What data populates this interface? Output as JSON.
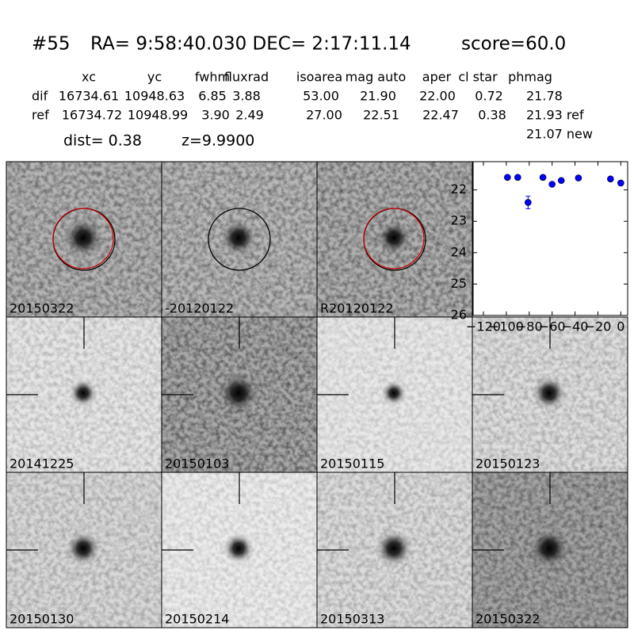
{
  "header": {
    "id": "#55",
    "coords": "RA= 9:58:40.030 DEC= 2:17:11.14",
    "score": "score=60.0"
  },
  "table": {
    "columns": [
      "xc",
      "yc",
      "fwhm",
      "fluxrad",
      "isoarea",
      "mag auto",
      "aper",
      "cl star",
      "phmag"
    ],
    "rows": [
      {
        "label": "dif",
        "cells": [
          "16734.61",
          "10948.63",
          "6.85",
          "3.88",
          "53.00",
          "21.90",
          "22.00",
          "0.72",
          "21.78"
        ]
      },
      {
        "label": "ref",
        "cells": [
          "16734.72",
          "10948.99",
          "3.90",
          "2.49",
          "27.00",
          "22.51",
          "22.47",
          "0.38",
          "21.93 ref"
        ]
      }
    ],
    "note": "21.07 new"
  },
  "dist": "dist=  0.38",
  "z": "z=9.9900",
  "stamps": [
    {
      "label": "20150322"
    },
    {
      "label": "-20120122"
    },
    {
      "label": "R20120122"
    },
    {
      "label": "20141225"
    },
    {
      "label": "20150103"
    },
    {
      "label": "20150115"
    },
    {
      "label": "20150123"
    },
    {
      "label": "20150130"
    },
    {
      "label": "20150214"
    },
    {
      "label": "20150313"
    },
    {
      "label": "20150322",
      "color": "#ff0000"
    }
  ],
  "chart_data": {
    "type": "scatter",
    "color": "#0000ff",
    "x": [
      -99,
      -90,
      -81,
      -68,
      -60,
      -52,
      -37,
      -9,
      0
    ],
    "values": [
      21.6,
      21.6,
      22.4,
      21.6,
      21.82,
      21.7,
      21.62,
      21.65,
      21.78
    ],
    "errors": [
      0.04,
      0.04,
      0.2,
      0.04,
      0.05,
      0.05,
      0.04,
      0.05,
      0.06
    ],
    "xlim": [
      -129,
      6
    ],
    "ylim": [
      26,
      21.1
    ],
    "xticks": [
      {
        "value": -120,
        "label": "−120"
      },
      {
        "value": -100,
        "label": "−100"
      },
      {
        "value": -80,
        "label": "−80"
      },
      {
        "value": -60,
        "label": "−60"
      },
      {
        "value": -40,
        "label": "−40"
      },
      {
        "value": -20,
        "label": "−20"
      },
      0
    ],
    "yticks": [
      22,
      23,
      24,
      25,
      26
    ]
  }
}
